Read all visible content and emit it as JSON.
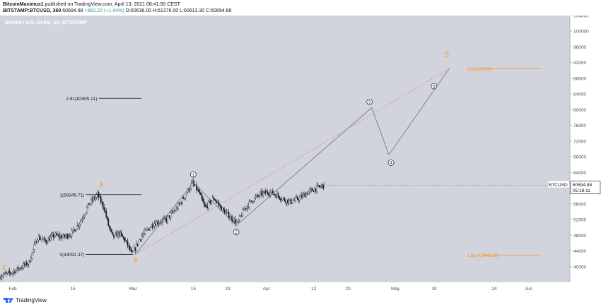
{
  "header": {
    "author": "BitcoinMaximus1",
    "published_text": "published on TradingView.com, April 13, 2021 08:41:50 CEST",
    "symbol_line": "BITSTAMP:BTCUSD, 360",
    "last": "60694.88",
    "change": "+863.22 (+1.44%)",
    "ohlc": {
      "o": "O:60636.00",
      "h": "H:61376.00",
      "l": "L:60613.30",
      "c": "C:60694.88"
    }
  },
  "chart_data": {
    "type": "candlestick",
    "title": "Bitcoin / U.S. Dollar, 6h, BITSTAMP",
    "y_axis": {
      "min": 36000,
      "max": 104000,
      "side": "right",
      "ticks": [
        40000,
        44000,
        48000,
        52000,
        56000,
        60000,
        64000,
        68000,
        72000,
        76000,
        80000,
        84000,
        88000,
        92000,
        96000,
        100000,
        104000
      ]
    },
    "x_axis": {
      "ticks": [
        {
          "label": "Feb",
          "day": 0
        },
        {
          "label": "15",
          "day": 14
        },
        {
          "label": "Mar",
          "day": 28
        },
        {
          "label": "15",
          "day": 42
        },
        {
          "label": "23",
          "day": 50
        },
        {
          "label": "Apr",
          "day": 59
        },
        {
          "label": "12",
          "day": 70
        },
        {
          "label": "20",
          "day": 78
        },
        {
          "label": "May",
          "day": 89
        },
        {
          "label": "10",
          "day": 98
        },
        {
          "label": "24",
          "day": 112
        },
        {
          "label": "Jun",
          "day": 120
        }
      ]
    },
    "price_path": [
      [
        -3,
        37500
      ],
      [
        0,
        38500
      ],
      [
        4,
        41000
      ],
      [
        6,
        47500
      ],
      [
        8,
        46500
      ],
      [
        10,
        48000
      ],
      [
        12,
        47500
      ],
      [
        14,
        48500
      ],
      [
        16,
        51500
      ],
      [
        18,
        56000
      ],
      [
        20,
        58345
      ],
      [
        21.5,
        55000
      ],
      [
        22.5,
        50500
      ],
      [
        23.5,
        47500
      ],
      [
        25,
        48500
      ],
      [
        26.5,
        46500
      ],
      [
        28,
        43091
      ],
      [
        30,
        47500
      ],
      [
        33,
        51000
      ],
      [
        36,
        52000
      ],
      [
        38.5,
        55000
      ],
      [
        40,
        57500
      ],
      [
        42,
        61300
      ],
      [
        43.5,
        59000
      ],
      [
        45,
        55000
      ],
      [
        47,
        57500
      ],
      [
        49,
        54500
      ],
      [
        51,
        52500
      ],
      [
        52.5,
        51000
      ],
      [
        54,
        54500
      ],
      [
        56,
        57000
      ],
      [
        58,
        58500
      ],
      [
        60,
        59000
      ],
      [
        62,
        58000
      ],
      [
        63.5,
        57000
      ],
      [
        65,
        56500
      ],
      [
        67,
        57500
      ],
      [
        69,
        59000
      ],
      [
        71,
        60000
      ],
      [
        72.5,
        60694.88
      ]
    ],
    "wave_labels": [
      {
        "text": "1",
        "day": -2,
        "price": 39200,
        "style": "orange"
      },
      {
        "text": "3",
        "day": 20.5,
        "price": 60300,
        "style": "orange"
      },
      {
        "text": "4",
        "day": 28.5,
        "price": 41000,
        "style": "orange"
      },
      {
        "text": "5",
        "day": 101,
        "price": 93500,
        "style": "orange"
      },
      {
        "text": "1",
        "day": 42,
        "price": 63500,
        "style": "circle"
      },
      {
        "text": "2",
        "day": 52,
        "price": 48800,
        "style": "circle"
      },
      {
        "text": "3",
        "day": 83,
        "price": 82000,
        "style": "circle"
      },
      {
        "text": "4",
        "day": 88,
        "price": 66500,
        "style": "circle"
      },
      {
        "text": "5",
        "day": 98,
        "price": 86000,
        "style": "circle"
      }
    ],
    "projection_path": [
      {
        "day": 28.5,
        "price": 43091
      },
      {
        "day": 42,
        "price": 61376
      },
      {
        "day": 52,
        "price": 50500
      },
      {
        "day": 83.5,
        "price": 80500
      },
      {
        "day": 87.5,
        "price": 68500
      },
      {
        "day": 101.5,
        "price": 90423.66
      }
    ],
    "dotted_line": [
      {
        "day": 28.5,
        "price": 43091
      },
      {
        "day": 101.5,
        "price": 90423.66
      }
    ],
    "hlines": [
      {
        "label": "2.61(82905.21)",
        "price": 82905.21,
        "day_start": 20,
        "day_end": 30,
        "color": "#131722",
        "label_side": "left"
      },
      {
        "label": "1(58345.71)",
        "price": 58345.71,
        "day_start": 17,
        "day_end": 30,
        "color": "#131722",
        "label_side": "left"
      },
      {
        "label": "0(43091.37)",
        "price": 43091.37,
        "day_start": 17,
        "day_end": 28,
        "color": "#131722",
        "label_side": "left"
      },
      {
        "label": "0(90423.66)",
        "price": 90423.66,
        "day_start": 109,
        "day_end": 123,
        "color": "#f7931a",
        "label_side": "inside"
      },
      {
        "label": "1.61(42946.10)",
        "price": 42946.1,
        "day_start": 109,
        "day_end": 123,
        "color": "#f7931a",
        "label_side": "inside"
      }
    ],
    "price_label": {
      "symbol": "BTCUSD",
      "price": "60694.88",
      "countdown": "05:18:11"
    }
  },
  "footer": {
    "brand": "TradingView"
  }
}
